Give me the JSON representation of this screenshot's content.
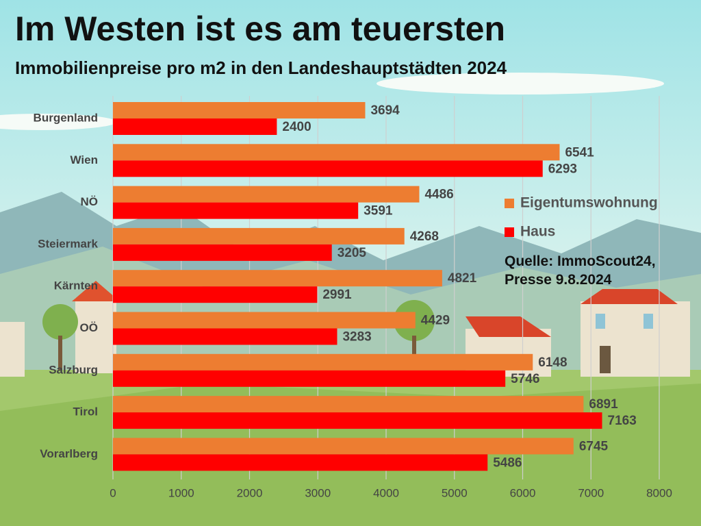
{
  "chart_data": {
    "type": "bar",
    "orientation": "horizontal",
    "title": "Im Westen ist es am teuersten",
    "subtitle": "Immobilienpreise pro m2 in den Landeshauptstädten 2024",
    "categories": [
      "Burgenland",
      "Wien",
      "NÖ",
      "Steiermark",
      "Kärnten",
      "OÖ",
      "Salzburg",
      "Tirol",
      "Vorarlberg"
    ],
    "series": [
      {
        "name": "Eigentumswohnung",
        "color": "#ED7D31",
        "values": [
          3694,
          6541,
          4486,
          4268,
          4821,
          4429,
          6148,
          6891,
          6745
        ]
      },
      {
        "name": "Haus",
        "color": "#FF0000",
        "values": [
          2400,
          6293,
          3591,
          3205,
          2991,
          3283,
          5746,
          7163,
          5486
        ]
      }
    ],
    "xlim": [
      0,
      8000
    ],
    "xticks": [
      0,
      1000,
      2000,
      3000,
      4000,
      5000,
      6000,
      7000,
      8000
    ],
    "grid": true,
    "legend": "right",
    "source": "Quelle: ImmoScout24, Presse 9.8.2024"
  }
}
